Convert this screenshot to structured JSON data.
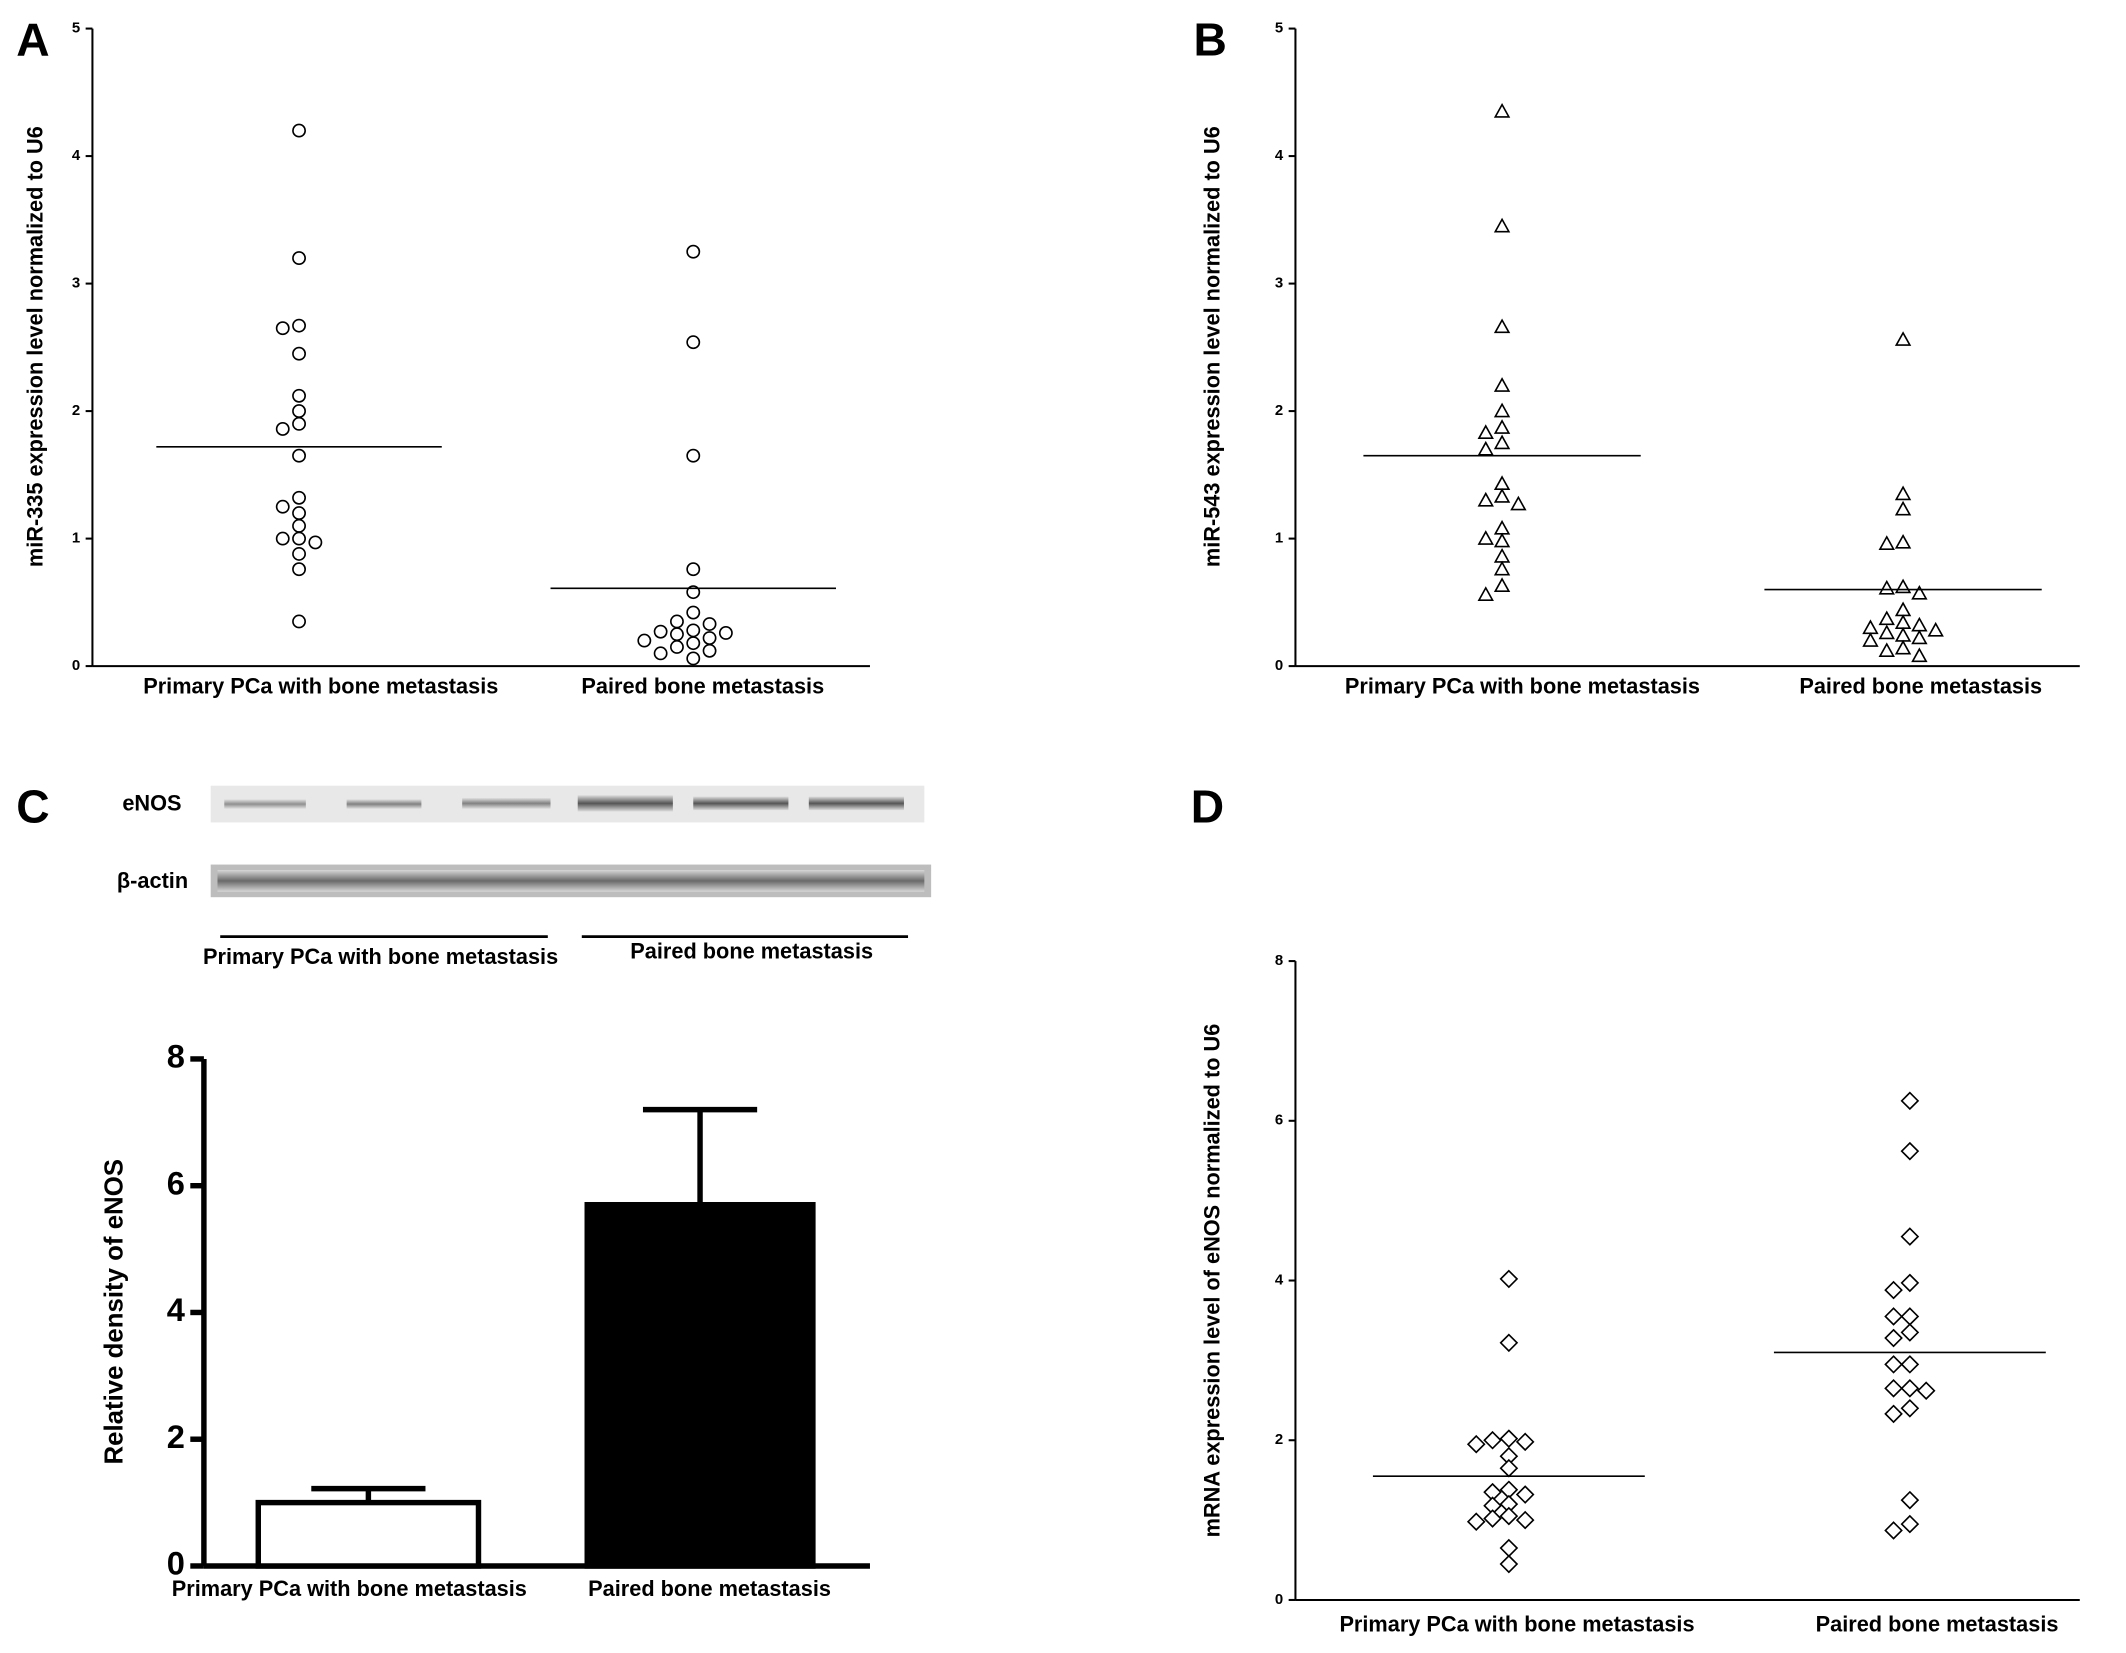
{
  "chart_data": [
    {
      "type": "dot",
      "panel": "A",
      "marker": "circle",
      "ylabel": "miR-335 expression level normalized to  U6",
      "categories": [
        "Primary PCa with bone metastasis",
        "Paired bone metastasis"
      ],
      "groups": [
        [
          4.2,
          3.2,
          2.67,
          2.65,
          2.45,
          2.12,
          2.0,
          1.9,
          1.86,
          1.65,
          1.32,
          1.25,
          1.2,
          1.1,
          1.0,
          1.0,
          0.97,
          0.88,
          0.76,
          0.35
        ],
        [
          3.25,
          2.54,
          1.65,
          0.76,
          0.58,
          0.42,
          0.35,
          0.33,
          0.28,
          0.27,
          0.26,
          0.25,
          0.22,
          0.2,
          0.18,
          0.15,
          0.12,
          0.1,
          0.06
        ]
      ],
      "means": [
        1.72,
        0.61
      ],
      "ylim": [
        0,
        5
      ],
      "yticks": [
        0,
        1,
        2,
        3,
        4,
        5
      ]
    },
    {
      "type": "dot",
      "panel": "B",
      "marker": "triangle",
      "ylabel": "miR-543 expression level normalized to  U6",
      "categories": [
        "Primary PCa with bone metastasis",
        "Paired bone metastasis"
      ],
      "groups": [
        [
          4.35,
          3.45,
          2.66,
          2.2,
          2.0,
          1.87,
          1.83,
          1.75,
          1.7,
          1.43,
          1.33,
          1.3,
          1.27,
          1.08,
          1.0,
          0.98,
          0.86,
          0.76,
          0.63,
          0.56
        ],
        [
          2.56,
          1.35,
          1.23,
          0.97,
          0.96,
          0.62,
          0.61,
          0.57,
          0.44,
          0.37,
          0.34,
          0.32,
          0.3,
          0.28,
          0.26,
          0.24,
          0.22,
          0.2,
          0.14,
          0.12,
          0.08
        ]
      ],
      "means": [
        1.65,
        0.6
      ],
      "ylim": [
        0,
        5
      ],
      "yticks": [
        0,
        1,
        2,
        3,
        4,
        5
      ]
    },
    {
      "type": "bar",
      "panel": "C",
      "blot": {
        "bands": [
          "eNOS",
          "β-actin"
        ],
        "groups": [
          "Primary PCa with bone metastasis",
          "Paired bone metastasis"
        ]
      },
      "ylabel": "Relative density of  eNOS",
      "categories": [
        "Primary PCa with bone metastasis",
        "Paired bone metastasis"
      ],
      "values": [
        1.0,
        5.7
      ],
      "errors": [
        0.22,
        1.5
      ],
      "colors": [
        "#ffffff",
        "#000000"
      ],
      "ylim": [
        0,
        8
      ],
      "yticks": [
        0,
        2,
        4,
        6,
        8
      ]
    },
    {
      "type": "dot",
      "panel": "D",
      "marker": "diamond",
      "ylabel": "mRNA expression level of eNOS normalized to  U6",
      "categories": [
        "Primary PCa with bone metastasis",
        "Paired bone metastasis"
      ],
      "groups": [
        [
          4.02,
          3.22,
          2.02,
          2.0,
          1.98,
          1.95,
          1.8,
          1.65,
          1.38,
          1.35,
          1.32,
          1.2,
          1.18,
          1.05,
          1.02,
          1.0,
          0.98,
          0.65,
          0.45
        ],
        [
          6.25,
          5.62,
          4.55,
          3.97,
          3.88,
          3.55,
          3.55,
          3.35,
          3.28,
          2.95,
          2.95,
          2.65,
          2.65,
          2.62,
          2.4,
          2.33,
          1.25,
          0.95,
          0.87
        ]
      ],
      "means": [
        1.55,
        3.1
      ],
      "ylim": [
        0,
        8
      ],
      "yticks": [
        0,
        2,
        4,
        6,
        8
      ]
    }
  ]
}
